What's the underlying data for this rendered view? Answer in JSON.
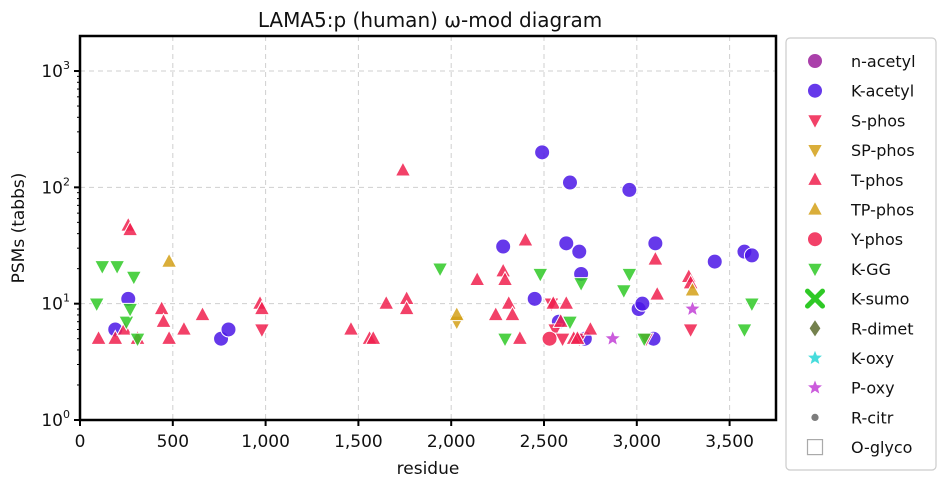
{
  "chart_data": {
    "type": "scatter",
    "title": "LAMA5:p (human) ω-mod diagram",
    "xlabel": "residue",
    "ylabel": "PSMs (tabbs)",
    "xlim": [
      0,
      3750
    ],
    "ylim": [
      1,
      2000
    ],
    "yscale": "log",
    "grid": true,
    "legend_position": "right-outside",
    "x_ticks": [
      0,
      500,
      1000,
      1500,
      2000,
      2500,
      3000,
      3500
    ],
    "x_tick_labels": [
      "0",
      "500",
      "1,000",
      "1,500",
      "2,000",
      "2,500",
      "3,000",
      "3,500"
    ],
    "y_ticks": [
      1,
      10,
      100,
      1000
    ],
    "y_tick_labels": [
      {
        "base": "10",
        "exp": "0"
      },
      {
        "base": "10",
        "exp": "1"
      },
      {
        "base": "10",
        "exp": "2"
      },
      {
        "base": "10",
        "exp": "3"
      }
    ],
    "series": [
      {
        "name": "n-acetyl",
        "marker": "circle",
        "color": "#9b1f9b",
        "points": []
      },
      {
        "name": "K-acetyl",
        "marker": "circle",
        "color": "#4b16e6",
        "points": [
          [
            190,
            6
          ],
          [
            260,
            11
          ],
          [
            760,
            5
          ],
          [
            800,
            6
          ],
          [
            2280,
            31
          ],
          [
            2450,
            11
          ],
          [
            2490,
            200
          ],
          [
            2580,
            7
          ],
          [
            2620,
            33
          ],
          [
            2640,
            110
          ],
          [
            2690,
            28
          ],
          [
            2700,
            18
          ],
          [
            2720,
            5
          ],
          [
            2960,
            95
          ],
          [
            3010,
            9
          ],
          [
            3030,
            10
          ],
          [
            3090,
            5
          ],
          [
            3100,
            33
          ],
          [
            3420,
            23
          ],
          [
            3580,
            28
          ],
          [
            3620,
            26
          ]
        ]
      },
      {
        "name": "S-phos",
        "marker": "triangle-down",
        "color": "#f0204e",
        "points": [
          [
            980,
            6
          ],
          [
            2540,
            10
          ],
          [
            2560,
            6
          ],
          [
            2600,
            5
          ],
          [
            2690,
            5
          ],
          [
            3050,
            5
          ],
          [
            3290,
            6
          ]
        ]
      },
      {
        "name": "SP-phos",
        "marker": "triangle-down",
        "color": "#d4a017",
        "points": [
          [
            2030,
            7
          ]
        ]
      },
      {
        "name": "T-phos",
        "marker": "triangle-up",
        "color": "#f0204e",
        "points": [
          [
            100,
            5
          ],
          [
            190,
            5
          ],
          [
            240,
            6
          ],
          [
            260,
            47
          ],
          [
            270,
            43
          ],
          [
            310,
            5
          ],
          [
            440,
            9
          ],
          [
            450,
            7
          ],
          [
            480,
            5
          ],
          [
            560,
            6
          ],
          [
            660,
            8
          ],
          [
            970,
            10
          ],
          [
            980,
            9
          ],
          [
            1460,
            6
          ],
          [
            1560,
            5
          ],
          [
            1580,
            5
          ],
          [
            1650,
            10
          ],
          [
            1740,
            140
          ],
          [
            1760,
            11
          ],
          [
            1760,
            9
          ],
          [
            2140,
            16
          ],
          [
            2240,
            8
          ],
          [
            2280,
            19
          ],
          [
            2290,
            16
          ],
          [
            2310,
            10
          ],
          [
            2330,
            8
          ],
          [
            2370,
            5
          ],
          [
            2400,
            35
          ],
          [
            2550,
            10
          ],
          [
            2590,
            7
          ],
          [
            2620,
            10
          ],
          [
            2660,
            5
          ],
          [
            2680,
            5
          ],
          [
            2750,
            6
          ],
          [
            3100,
            24
          ],
          [
            3110,
            12
          ],
          [
            3280,
            17
          ],
          [
            3290,
            15
          ]
        ]
      },
      {
        "name": "TP-phos",
        "marker": "triangle-up",
        "color": "#d4a017",
        "points": [
          [
            480,
            23
          ],
          [
            2030,
            8
          ],
          [
            3300,
            13
          ]
        ]
      },
      {
        "name": "Y-phos",
        "marker": "circle",
        "color": "#f0204e",
        "points": [
          [
            2530,
            5
          ]
        ]
      },
      {
        "name": "K-GG",
        "marker": "triangle-down",
        "color": "#2fc926",
        "points": [
          [
            90,
            10
          ],
          [
            120,
            21
          ],
          [
            200,
            21
          ],
          [
            250,
            7
          ],
          [
            270,
            9
          ],
          [
            290,
            17
          ],
          [
            310,
            5
          ],
          [
            1940,
            20
          ],
          [
            2290,
            5
          ],
          [
            2480,
            18
          ],
          [
            2640,
            7
          ],
          [
            2700,
            15
          ],
          [
            2930,
            13
          ],
          [
            2960,
            18
          ],
          [
            3040,
            5
          ],
          [
            3580,
            6
          ],
          [
            3620,
            10
          ]
        ]
      },
      {
        "name": "K-sumo",
        "marker": "x",
        "color": "#2fc926",
        "points": []
      },
      {
        "name": "R-dimet",
        "marker": "diamond",
        "color": "#5c6b2e",
        "points": []
      },
      {
        "name": "K-oxy",
        "marker": "star",
        "color": "#27d6d6",
        "points": []
      },
      {
        "name": "P-oxy",
        "marker": "star",
        "color": "#c23fd6",
        "points": [
          [
            2870,
            5
          ],
          [
            3300,
            9
          ]
        ]
      },
      {
        "name": "R-citr",
        "marker": "dot",
        "color": "#666666",
        "points": []
      },
      {
        "name": "O-glyco",
        "marker": "square-open",
        "color": "#aaaaaa",
        "points": []
      }
    ]
  }
}
